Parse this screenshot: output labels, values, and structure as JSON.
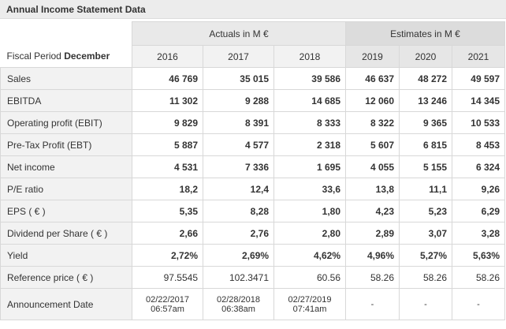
{
  "title": "Annual Income Statement Data",
  "header": {
    "period_label": "Fiscal Period",
    "period_month": "December",
    "groups": [
      "Actuals in M €",
      "Estimates in M €"
    ],
    "years": [
      "2016",
      "2017",
      "2018",
      "2019",
      "2020",
      "2021"
    ]
  },
  "rows": [
    {
      "label": "Sales",
      "values": [
        "46 769",
        "35 015",
        "39 586",
        "46 637",
        "48 272",
        "49 597"
      ]
    },
    {
      "label": "EBITDA",
      "values": [
        "11 302",
        "9 288",
        "14 685",
        "12 060",
        "13 246",
        "14 345"
      ]
    },
    {
      "label": "Operating profit (EBIT)",
      "values": [
        "9 829",
        "8 391",
        "8 333",
        "8 322",
        "9 365",
        "10 533"
      ]
    },
    {
      "label": "Pre-Tax Profit (EBT)",
      "values": [
        "5 887",
        "4 577",
        "2 318",
        "5 607",
        "6 815",
        "8 453"
      ]
    },
    {
      "label": "Net income",
      "values": [
        "4 531",
        "7 336",
        "1 695",
        "4 055",
        "5 155",
        "6 324"
      ]
    },
    {
      "label": "P/E ratio",
      "values": [
        "18,2",
        "12,4",
        "33,6",
        "13,8",
        "11,1",
        "9,26"
      ]
    },
    {
      "label": "EPS ( € )",
      "values": [
        "5,35",
        "8,28",
        "1,80",
        "4,23",
        "5,23",
        "6,29"
      ]
    },
    {
      "label": "Dividend per Share ( € )",
      "values": [
        "2,66",
        "2,76",
        "2,80",
        "2,89",
        "3,07",
        "3,28"
      ]
    },
    {
      "label": "Yield",
      "values": [
        "2,72%",
        "2,69%",
        "4,62%",
        "4,96%",
        "5,27%",
        "5,63%"
      ]
    },
    {
      "label": "Reference price ( € )",
      "values": [
        "97.5545",
        "102.3471",
        "60.56",
        "58.26",
        "58.26",
        "58.26"
      ]
    }
  ],
  "announcement": {
    "label": "Announcement Date",
    "values": [
      {
        "date": "02/22/2017",
        "time": "06:57am"
      },
      {
        "date": "02/28/2018",
        "time": "06:38am"
      },
      {
        "date": "02/27/2019",
        "time": "07:41am"
      },
      "-",
      "-",
      "-"
    ]
  }
}
